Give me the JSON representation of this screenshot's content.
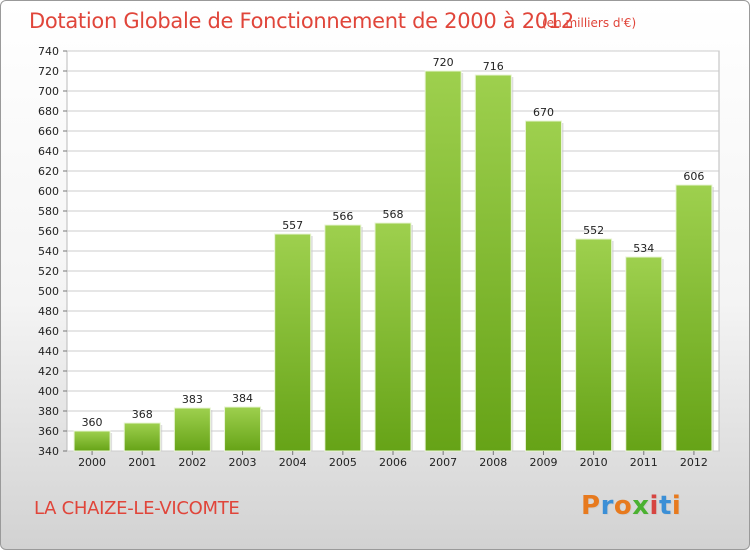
{
  "header": {
    "title": "Dotation Globale de Fonctionnement de 2000 à 2012",
    "unit": "(en milliers d'€)"
  },
  "footer": {
    "commune": "LA CHAIZE-LE-VICOMTE",
    "logo": "Proxiti",
    "logo_colors": [
      "#e77a1e",
      "#3b8fd6",
      "#e77a1e",
      "#4bb131",
      "#d64541",
      "#3b8fd6",
      "#e77a1e"
    ]
  },
  "colors": {
    "bar_light": "#9ed04e",
    "bar_dark": "#66a317",
    "grid": "#cccccc",
    "text_accent": "#e0453a"
  },
  "chart_data": {
    "type": "bar",
    "categories": [
      "2000",
      "2001",
      "2002",
      "2003",
      "2004",
      "2005",
      "2006",
      "2007",
      "2008",
      "2009",
      "2010",
      "2011",
      "2012"
    ],
    "values": [
      360,
      368,
      383,
      384,
      557,
      566,
      568,
      720,
      716,
      670,
      552,
      534,
      606
    ],
    "title": "Dotation Globale de Fonctionnement de 2000 à 2012",
    "subtitle": "(en milliers d'€)",
    "ylim": [
      340,
      740
    ],
    "ytick_step": 20,
    "grid": true,
    "legend": "none"
  }
}
